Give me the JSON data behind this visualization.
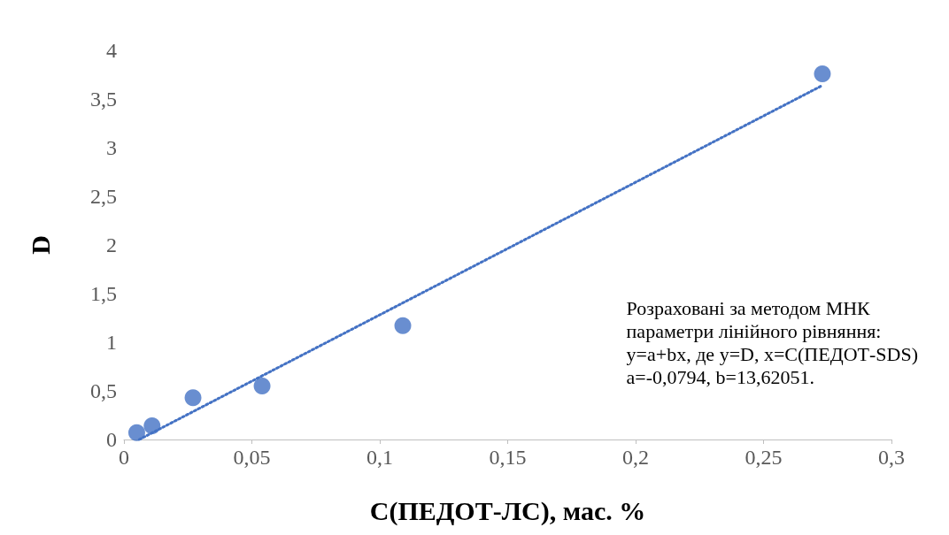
{
  "chart_data": {
    "type": "scatter",
    "xlabel": "C(ПЕДОТ-ЛС), мас. %",
    "ylabel": "D",
    "x": [
      0.005,
      0.011,
      0.027,
      0.054,
      0.109,
      0.273
    ],
    "series": [
      {
        "color": "#4472c4",
        "marker": "circle",
        "values": [
          0.07,
          0.14,
          0.43,
          0.55,
          1.17,
          3.76
        ]
      },
      {
        "type": "line",
        "color": "#4472c4",
        "line_style": "dotted",
        "marker": "none",
        "x": [
          0.006,
          0.273
        ],
        "values": [
          0,
          3.64
        ]
      }
    ],
    "xlim": [
      0,
      0.3
    ],
    "xticks": [
      0,
      {
        "value": 0.05,
        "label": "0,05"
      },
      {
        "value": 0.1,
        "label": "0,1"
      },
      {
        "value": 0.15,
        "label": "0,15"
      },
      {
        "value": 0.2,
        "label": "0,2"
      },
      {
        "value": 0.25,
        "label": "0,25"
      },
      {
        "value": 0.3,
        "label": "0,3"
      }
    ],
    "ylim": [
      0,
      4
    ],
    "yticks": [
      0,
      {
        "value": 0.5,
        "label": "0,5"
      },
      1,
      {
        "value": 1.5,
        "label": "1,5"
      },
      2,
      {
        "value": 2.5,
        "label": "2,5"
      },
      3,
      {
        "value": 3.5,
        "label": "3,5"
      },
      4
    ],
    "grid": false,
    "annotations": [
      "Розраховані за методом МНК\nпараметри лінійного рівняння:\ny=a+bx, де y=D, x=C(ПЕДОТ-SDS)\na=-0,0794, b=13,62051."
    ]
  }
}
